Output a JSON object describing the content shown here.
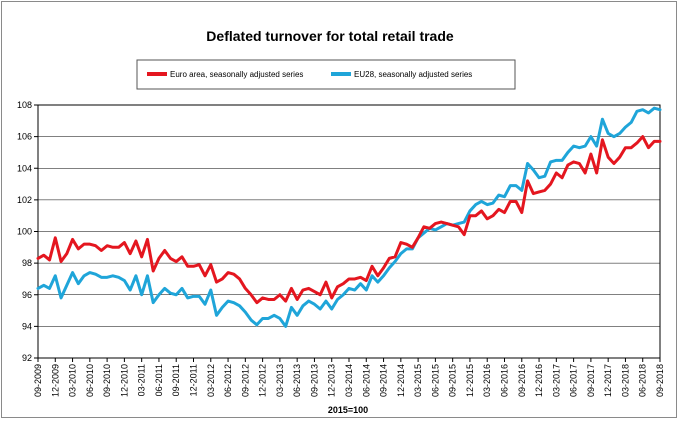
{
  "chart_data": {
    "type": "line",
    "title": "Deflated turnover for total retail trade",
    "xlabel": "2015=100",
    "ylabel": "",
    "ylim": [
      92,
      108
    ],
    "y_ticks": [
      "92",
      "94",
      "96",
      "98",
      "100",
      "102",
      "104",
      "106",
      "108"
    ],
    "x_tick_labels": [
      "09-2009",
      "12-2009",
      "03-2010",
      "06-2010",
      "09-2010",
      "12-2010",
      "03-2011",
      "06-2011",
      "09-2011",
      "12-2011",
      "03-2012",
      "06-2012",
      "09-2012",
      "12-2012",
      "03-2013",
      "06-2013",
      "09-2013",
      "12-2013",
      "03-2014",
      "06-2014",
      "09-2014",
      "12-2014",
      "03-2015",
      "06-2015",
      "09-2015",
      "12-2015",
      "03-2016",
      "06-2016",
      "09-2016",
      "12-2016",
      "03-2017",
      "06-2017",
      "09-2017",
      "12-2017",
      "03-2018",
      "06-2018",
      "09-2018"
    ],
    "grid": true,
    "legend_position": "top",
    "series": [
      {
        "name": "Euro area, seasonally adjusted series",
        "color": "#e4161f",
        "values": [
          98.3,
          98.5,
          98.2,
          99.6,
          98.1,
          98.6,
          99.5,
          98.9,
          99.2,
          99.2,
          99.1,
          98.8,
          99.1,
          99.0,
          99.0,
          99.3,
          98.6,
          99.4,
          98.4,
          99.5,
          97.5,
          98.3,
          98.8,
          98.3,
          98.1,
          98.4,
          97.8,
          97.8,
          97.9,
          97.2,
          97.9,
          96.8,
          97.0,
          97.4,
          97.3,
          97.0,
          96.4,
          96.0,
          95.5,
          95.8,
          95.7,
          95.7,
          96.0,
          95.6,
          96.4,
          95.7,
          96.3,
          96.4,
          96.2,
          96.0,
          96.8,
          95.8,
          96.5,
          96.7,
          97.0,
          97.0,
          97.1,
          96.9,
          97.8,
          97.2,
          97.7,
          98.3,
          98.4,
          99.3,
          99.2,
          99.0,
          99.6,
          100.3,
          100.2,
          100.5,
          100.6,
          100.5,
          100.4,
          100.3,
          99.8,
          101.0,
          101.0,
          101.3,
          100.8,
          101.0,
          101.4,
          101.2,
          101.9,
          101.9,
          101.2,
          103.2,
          102.4,
          102.5,
          102.6,
          103.0,
          103.7,
          103.4,
          104.2,
          104.4,
          104.3,
          103.7,
          104.9,
          103.7,
          105.8,
          104.7,
          104.3,
          104.7,
          105.3,
          105.3,
          105.6,
          106.0,
          105.3,
          105.7,
          105.7
        ]
      },
      {
        "name": "EU28, seasonally adjusted series",
        "color": "#1fa5d9",
        "values": [
          96.4,
          96.6,
          96.4,
          97.2,
          95.8,
          96.6,
          97.4,
          96.7,
          97.2,
          97.4,
          97.3,
          97.1,
          97.1,
          97.2,
          97.1,
          96.9,
          96.3,
          97.2,
          96.0,
          97.2,
          95.5,
          96.0,
          96.4,
          96.1,
          96.0,
          96.4,
          95.8,
          95.9,
          95.9,
          95.4,
          96.3,
          94.7,
          95.2,
          95.6,
          95.5,
          95.3,
          94.9,
          94.4,
          94.1,
          94.5,
          94.5,
          94.7,
          94.5,
          94.0,
          95.2,
          94.7,
          95.3,
          95.6,
          95.4,
          95.1,
          95.6,
          95.1,
          95.7,
          96.0,
          96.4,
          96.3,
          96.7,
          96.3,
          97.2,
          96.8,
          97.2,
          97.7,
          98.1,
          98.6,
          98.9,
          98.9,
          99.6,
          99.9,
          100.2,
          100.1,
          100.3,
          100.5,
          100.4,
          100.5,
          100.6,
          101.3,
          101.7,
          101.9,
          101.7,
          101.8,
          102.3,
          102.2,
          102.9,
          102.9,
          102.6,
          104.3,
          103.9,
          103.4,
          103.5,
          104.4,
          104.5,
          104.5,
          105.0,
          105.4,
          105.3,
          105.4,
          106.0,
          105.4,
          107.1,
          106.2,
          106.0,
          106.2,
          106.6,
          106.9,
          107.6,
          107.7,
          107.5,
          107.8,
          107.7
        ]
      }
    ]
  }
}
